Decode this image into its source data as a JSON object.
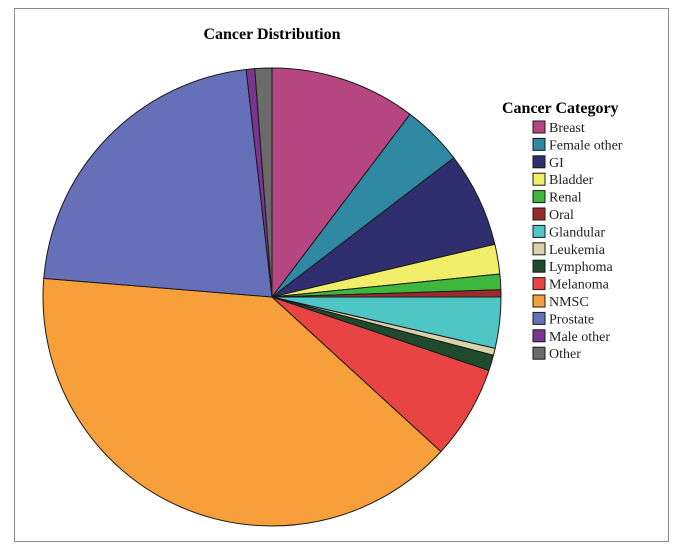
{
  "chart_data": {
    "type": "pie",
    "title": "Cancer Distribution",
    "legend_title": "Cancer Category",
    "legend_position": "right",
    "start_angle_deg": 0,
    "direction": "clockwise",
    "slices": [
      {
        "label": "Breast",
        "value": 10.3,
        "color": "#b5467f"
      },
      {
        "label": "Female other",
        "value": 4.3,
        "color": "#2f89a3"
      },
      {
        "label": "GI",
        "value": 6.7,
        "color": "#2f2f6f"
      },
      {
        "label": "Bladder",
        "value": 2.1,
        "color": "#f2ee6a"
      },
      {
        "label": "Renal",
        "value": 1.1,
        "color": "#3db83d"
      },
      {
        "label": "Oral",
        "value": 0.5,
        "color": "#9a2b2b"
      },
      {
        "label": "Glandular",
        "value": 3.6,
        "color": "#4fc6c6"
      },
      {
        "label": "Leukemia",
        "value": 0.5,
        "color": "#d8d3a8"
      },
      {
        "label": "Lymphoma",
        "value": 1.1,
        "color": "#1e4a2e"
      },
      {
        "label": "Melanoma",
        "value": 6.6,
        "color": "#e84444"
      },
      {
        "label": "NMSC",
        "value": 39.5,
        "color": "#f7a03b"
      },
      {
        "label": "Prostate",
        "value": 21.9,
        "color": "#6670b8"
      },
      {
        "label": "Male other",
        "value": 0.6,
        "color": "#7b3590"
      },
      {
        "label": "Other",
        "value": 1.2,
        "color": "#6b6b6b"
      }
    ]
  }
}
